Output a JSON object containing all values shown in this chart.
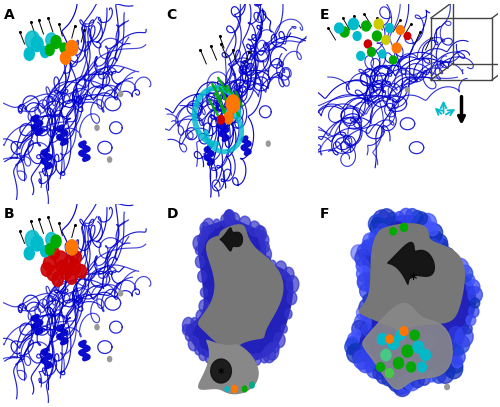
{
  "panel_labels": [
    "A",
    "B",
    "C",
    "D",
    "E",
    "F"
  ],
  "background_color": "#ffffff",
  "fig_width": 5.0,
  "fig_height": 4.07,
  "panel_label_fontsize": 10,
  "panel_label_fontweight": "bold",
  "blue_protein": "#0000cc",
  "cyan_color": "#00bbcc",
  "green_color": "#00aa00",
  "orange_color": "#ff7700",
  "red_color": "#cc0000",
  "gray_color": "#999999",
  "black_color": "#000000"
}
